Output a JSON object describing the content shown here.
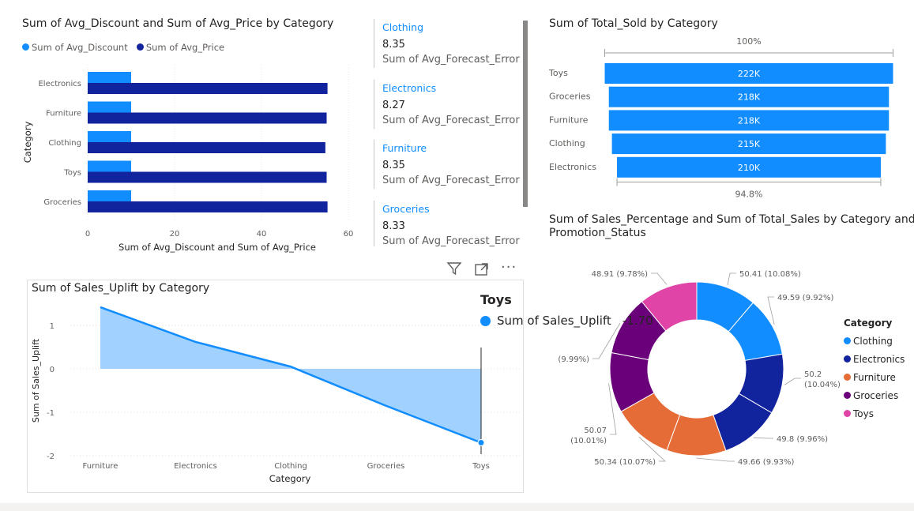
{
  "colors": {
    "light_blue": "#118dff",
    "dark_blue": "#12239e",
    "orange": "#e66c37",
    "purple": "#6b007b",
    "pink": "#e044a7",
    "area": "#a0d1ff"
  },
  "bar_chart": {
    "title": "Sum of Avg_Discount and Sum of Avg_Price by Category",
    "legend": [
      "Sum of Avg_Discount",
      "Sum of Avg_Price"
    ],
    "ylabel": "Category",
    "xlabel": "Sum of Avg_Discount and Sum of Avg_Price",
    "xticks": [
      "0",
      "20",
      "40",
      "60"
    ]
  },
  "cards": [
    {
      "category": "Clothing",
      "value": "8.35",
      "label": "Sum of Avg_Forecast_Error"
    },
    {
      "category": "Electronics",
      "value": "8.27",
      "label": "Sum of Avg_Forecast_Error"
    },
    {
      "category": "Furniture",
      "value": "8.35",
      "label": "Sum of Avg_Forecast_Error"
    },
    {
      "category": "Groceries",
      "value": "8.33",
      "label": "Sum of Avg_Forecast_Error"
    }
  ],
  "funnel": {
    "title": "Sum of Total_Sold by Category",
    "top_label": "100%",
    "bottom_label": "94.8%"
  },
  "line_chart": {
    "title": "Sum of Sales_Uplift by Category",
    "ylabel": "Sum of Sales_Uplift",
    "xlabel": "Category",
    "yticks": [
      "1",
      "0",
      "-1",
      "-2"
    ]
  },
  "tooltip": {
    "title": "Toys",
    "series": "Sum of Sales_Uplift",
    "value": "-1.70"
  },
  "donut": {
    "title_line1": "Sum of Sales_Percentage and Sum of Total_Sales by Category and",
    "title_line2": "Promotion_Status",
    "legend_title": "Category",
    "legend": [
      "Clothing",
      "Electronics",
      "Furniture",
      "Groceries",
      "Toys"
    ]
  },
  "chart_data": [
    {
      "type": "bar",
      "categories": [
        "Electronics",
        "Furniture",
        "Clothing",
        "Toys",
        "Groceries"
      ],
      "series": [
        {
          "name": "Sum of Avg_Discount",
          "values": [
            10,
            10,
            10,
            10,
            10
          ]
        },
        {
          "name": "Sum of Avg_Price",
          "values": [
            55.2,
            55.0,
            54.7,
            55.0,
            55.2
          ]
        }
      ],
      "xlim": [
        0,
        60
      ]
    },
    {
      "type": "bar",
      "categories": [
        "Toys",
        "Groceries",
        "Furniture",
        "Clothing",
        "Electronics"
      ],
      "values": [
        222,
        218,
        218,
        215,
        210
      ],
      "labels": [
        "222K",
        "218K",
        "218K",
        "215K",
        "210K"
      ]
    },
    {
      "type": "area",
      "x": [
        "Furniture",
        "Electronics",
        "Clothing",
        "Groceries",
        "Toys"
      ],
      "values": [
        1.42,
        0.62,
        0.05,
        -0.85,
        -1.7
      ],
      "ylim": [
        -2,
        1.5
      ]
    },
    {
      "type": "pie",
      "slices": [
        {
          "category": "Clothing",
          "value": 50.41,
          "label": "50.41 (10.08%)"
        },
        {
          "category": "Clothing",
          "value": 49.59,
          "label": "49.59 (9.92%)"
        },
        {
          "category": "Electronics",
          "value": 50.2,
          "label_line1": "50.2",
          "label_line2": "(10.04%)"
        },
        {
          "category": "Electronics",
          "value": 49.8,
          "label": "49.8 (9.96%)"
        },
        {
          "category": "Furniture",
          "value": 49.66,
          "label": "49.66 (9.93%)"
        },
        {
          "category": "Furniture",
          "value": 50.34,
          "label": "50.34 (10.07%)"
        },
        {
          "category": "Groceries",
          "value": 50.07,
          "label_line1": "50.07",
          "label_line2": "(10.01%)"
        },
        {
          "category": "Groceries",
          "value": 49.95,
          "label": "(9.99%)"
        },
        {
          "category": "Toys",
          "value": 48.91,
          "label": "48.91 (9.78%)"
        }
      ]
    }
  ]
}
